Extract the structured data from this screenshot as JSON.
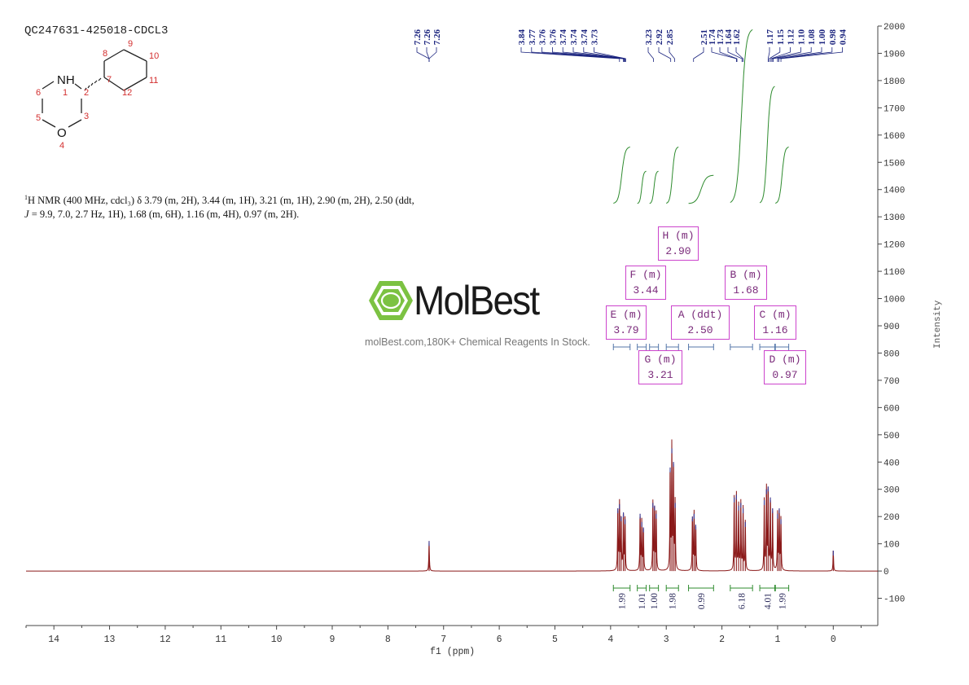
{
  "sample_id": "QC247631-425018-CDCL3",
  "structure_labels": [
    "NH",
    "1",
    "2",
    "3",
    "O",
    "4",
    "5",
    "6",
    "7",
    "8",
    "9",
    "10",
    "11",
    "12"
  ],
  "nmr_text": {
    "prefix": "1",
    "line1": "H NMR (400 MHz, cdcl₃) δ 3.79 (m, 2H), 3.44 (m, 1H), 3.21 (m, 1H), 2.90 (m, 2H), 2.50 (ddt,",
    "line2_j": "J",
    "line2": " = 9.9, 7.0, 2.7 Hz, 1H), 1.68 (m, 6H), 1.16 (m, 4H), 0.97 (m, 2H)."
  },
  "logo": {
    "name": "MolBest",
    "tagline": "molBest.com,180K+ Chemical Reagents In Stock.",
    "color": "#7cc242"
  },
  "colors": {
    "spectrum": "#8b1a1a",
    "peak_label": "#1a237e",
    "integral": "#2e8b2e",
    "multiplet_box": "#cc44cc"
  },
  "chart_data": {
    "type": "line",
    "xlabel": "f1 (ppm)",
    "ylabel": "Intensity",
    "xlim": [
      14.5,
      -0.8
    ],
    "ylim": [
      -200,
      2000
    ],
    "x_ticks": [
      "14",
      "13",
      "12",
      "11",
      "10",
      "9",
      "8",
      "7",
      "6",
      "5",
      "4",
      "3",
      "2",
      "1",
      "0"
    ],
    "y_ticks": [
      "2000",
      "1900",
      "1800",
      "1700",
      "1600",
      "1500",
      "1400",
      "1300",
      "1200",
      "1100",
      "1000",
      "900",
      "800",
      "700",
      "600",
      "500",
      "400",
      "300",
      "200",
      "100",
      "0",
      "-100"
    ],
    "peak_labels": [
      "7.26",
      "7.26",
      "7.26",
      "3.84",
      "3.77",
      "3.76",
      "3.76",
      "3.74",
      "3.74",
      "3.74",
      "3.73",
      "3.23",
      "2.92",
      "2.85",
      "2.51",
      "1.74",
      "1.73",
      "1.64",
      "1.62",
      "1.17",
      "1.15",
      "1.12",
      "1.10",
      "1.08",
      "1.00",
      "0.98",
      "0.94"
    ],
    "peaks": [
      {
        "ppm": 7.26,
        "height": 110
      },
      {
        "ppm": 3.87,
        "height": 230
      },
      {
        "ppm": 3.84,
        "height": 245
      },
      {
        "ppm": 3.81,
        "height": 200
      },
      {
        "ppm": 3.77,
        "height": 215
      },
      {
        "ppm": 3.74,
        "height": 190
      },
      {
        "ppm": 3.47,
        "height": 210
      },
      {
        "ppm": 3.44,
        "height": 180
      },
      {
        "ppm": 3.41,
        "height": 160
      },
      {
        "ppm": 3.24,
        "height": 250
      },
      {
        "ppm": 3.21,
        "height": 240
      },
      {
        "ppm": 3.18,
        "height": 210
      },
      {
        "ppm": 2.93,
        "height": 380
      },
      {
        "ppm": 2.9,
        "height": 450
      },
      {
        "ppm": 2.87,
        "height": 400
      },
      {
        "ppm": 2.84,
        "height": 250
      },
      {
        "ppm": 2.53,
        "height": 200
      },
      {
        "ppm": 2.5,
        "height": 210
      },
      {
        "ppm": 2.47,
        "height": 170
      },
      {
        "ppm": 1.78,
        "height": 270
      },
      {
        "ppm": 1.74,
        "height": 280
      },
      {
        "ppm": 1.7,
        "height": 240
      },
      {
        "ppm": 1.66,
        "height": 250
      },
      {
        "ppm": 1.62,
        "height": 230
      },
      {
        "ppm": 1.58,
        "height": 180
      },
      {
        "ppm": 1.24,
        "height": 260
      },
      {
        "ppm": 1.2,
        "height": 300
      },
      {
        "ppm": 1.17,
        "height": 310
      },
      {
        "ppm": 1.13,
        "height": 270
      },
      {
        "ppm": 1.09,
        "height": 230
      },
      {
        "ppm": 1.0,
        "height": 210
      },
      {
        "ppm": 0.97,
        "height": 230
      },
      {
        "ppm": 0.94,
        "height": 190
      },
      {
        "ppm": 0.0,
        "height": 75
      }
    ],
    "multiplets": [
      {
        "label": "H (m)",
        "value": "2.90"
      },
      {
        "label": "F (m)",
        "value": "3.44"
      },
      {
        "label": "B (m)",
        "value": "1.68"
      },
      {
        "label": "E (m)",
        "value": "3.79"
      },
      {
        "label": "A (ddt)",
        "value": "2.50"
      },
      {
        "label": "C (m)",
        "value": "1.16"
      },
      {
        "label": "G (m)",
        "value": "3.21"
      },
      {
        "label": "D (m)",
        "value": "0.97"
      }
    ],
    "integrals": [
      {
        "from": 3.95,
        "to": 3.65,
        "value": "1.99",
        "rise": 70
      },
      {
        "from": 3.52,
        "to": 3.36,
        "value": "1.01",
        "rise": 40
      },
      {
        "from": 3.3,
        "to": 3.14,
        "value": "1.00",
        "rise": 40
      },
      {
        "from": 3.0,
        "to": 2.78,
        "value": "1.98",
        "rise": 70
      },
      {
        "from": 2.6,
        "to": 2.15,
        "value": "0.99",
        "rise": 35
      },
      {
        "from": 1.85,
        "to": 1.45,
        "value": "6.18",
        "rise": 215
      },
      {
        "from": 1.32,
        "to": 1.05,
        "value": "4.01",
        "rise": 145
      },
      {
        "from": 1.04,
        "to": 0.8,
        "value": "1.99",
        "rise": 70
      }
    ]
  }
}
